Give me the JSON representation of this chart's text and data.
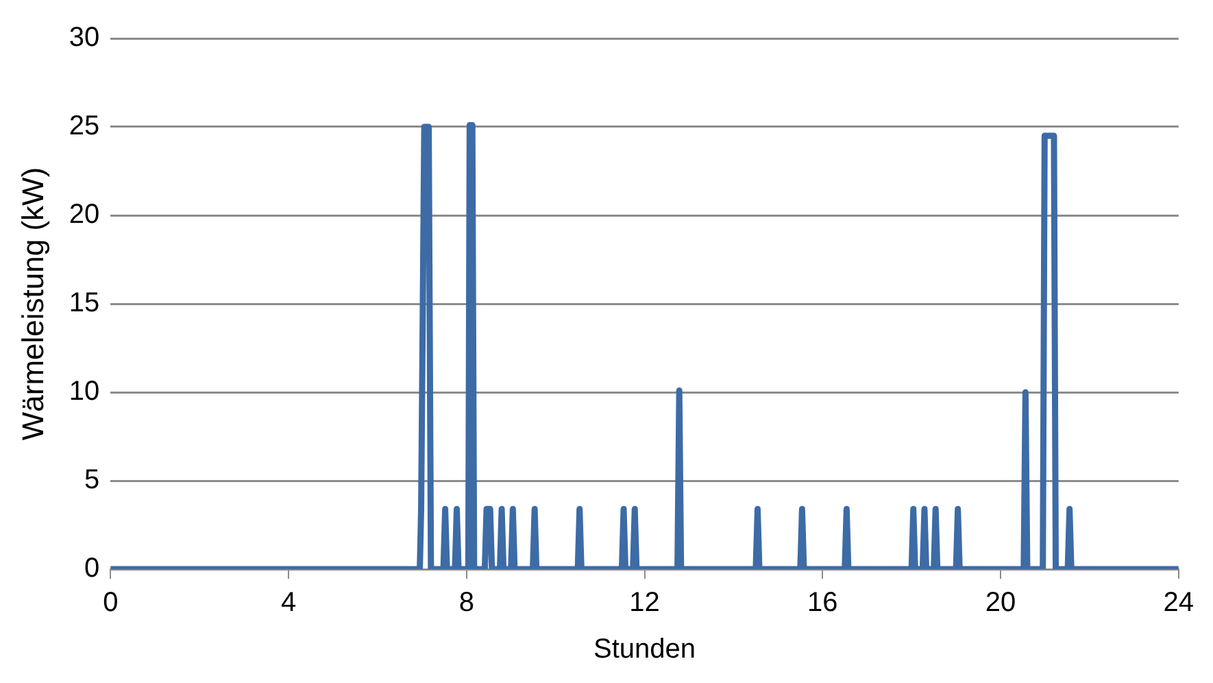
{
  "chart_data": {
    "type": "line",
    "xlabel": "Stunden",
    "ylabel": "Wärmeleistung (kW)",
    "xlim": [
      0,
      24
    ],
    "xticks": [
      0,
      4,
      8,
      12,
      16,
      20,
      24
    ],
    "ylim": [
      0,
      30
    ],
    "yticks": [
      0,
      5,
      10,
      15,
      20,
      25,
      30
    ],
    "grid": "y",
    "legend": false,
    "marker": "none",
    "line_style": "solid",
    "series": [
      {
        "color": "#3d6ba6",
        "x": [
          0,
          6.95,
          6.98,
          7.05,
          7.15,
          7.2,
          7.48,
          7.52,
          7.56,
          7.74,
          7.78,
          7.82,
          8.04,
          8.07,
          8.13,
          8.17,
          8.41,
          8.45,
          8.49,
          8.53,
          8.57,
          8.75,
          8.79,
          8.83,
          9.0,
          9.04,
          9.08,
          9.49,
          9.53,
          9.57,
          10.5,
          10.54,
          10.58,
          11.49,
          11.53,
          11.57,
          11.74,
          11.78,
          11.82,
          12.74,
          12.78,
          12.82,
          14.5,
          14.54,
          14.58,
          15.5,
          15.54,
          15.58,
          16.5,
          16.54,
          16.58,
          18.0,
          18.04,
          18.08,
          18.25,
          18.29,
          18.33,
          18.5,
          18.54,
          18.58,
          19.0,
          19.04,
          19.08,
          20.52,
          20.56,
          20.6,
          20.95,
          20.99,
          21.2,
          21.24,
          21.51,
          21.55,
          21.59,
          24
        ],
        "values": [
          0,
          0,
          3.4,
          25,
          25,
          0,
          0,
          3.4,
          0,
          0,
          3.4,
          0,
          0,
          25.1,
          25.1,
          0,
          0,
          3.4,
          3.4,
          3.4,
          0,
          0,
          3.4,
          0,
          0,
          3.4,
          0,
          0,
          3.4,
          0,
          0,
          3.4,
          0,
          0,
          3.4,
          0,
          0,
          3.4,
          0,
          0,
          10.1,
          0,
          0,
          3.4,
          0,
          0,
          3.4,
          0,
          0,
          3.4,
          0,
          0,
          3.4,
          0,
          0,
          3.4,
          0,
          0,
          3.4,
          0,
          0,
          3.4,
          0,
          0,
          10,
          0,
          0,
          24.5,
          24.5,
          0,
          0,
          3.4,
          0,
          0
        ]
      }
    ]
  }
}
